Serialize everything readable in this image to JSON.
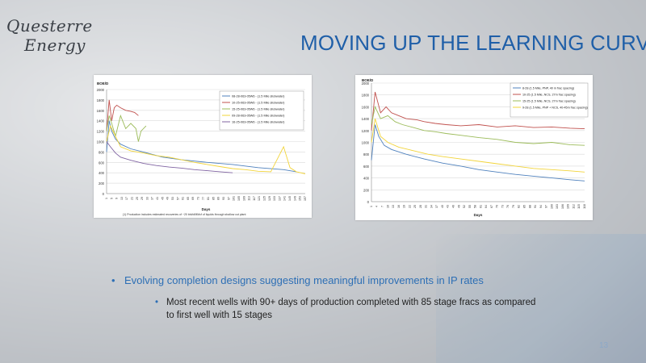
{
  "slide": {
    "title": "MOVING UP THE LEARNING CURVE",
    "logo_line1": "Questerre",
    "logo_line2": "Energy",
    "bullet1": "Evolving completion designs suggesting meaningful improvements in IP rates",
    "bullet2": "Most recent wells with 90+ days of production completed with 85 stage fracs as compared to first well with 15 stages",
    "page_number": "13"
  },
  "chart_data": [
    {
      "type": "line",
      "ylabel": "BOE/D",
      "xlabel": "Days",
      "ylim": [
        0,
        2000
      ],
      "yticks": [
        0,
        200,
        400,
        600,
        800,
        1000,
        1200,
        1400,
        1600,
        1800,
        2000
      ],
      "xticks": [
        1,
        5,
        9,
        13,
        17,
        21,
        25,
        29,
        33,
        37,
        41,
        45,
        49,
        53,
        57,
        61,
        65,
        69,
        73,
        77,
        81,
        85,
        89,
        93,
        97,
        101,
        105,
        109,
        113,
        117,
        121,
        125,
        129,
        133,
        137,
        141,
        145,
        149,
        153,
        157
      ],
      "xlim": [
        1,
        157
      ],
      "footnote": "(1) Production includes estimated recoveries of ~20 bbl/d/MMcf of liquids through shallow cut plant",
      "legend_position": "top-right",
      "grid": true,
      "series": [
        {
          "name": "08-28-063-05W6 - (1.5 Mile slickwater)",
          "color": "#4f81bd",
          "points": [
            [
              1,
              800
            ],
            [
              3,
              1400
            ],
            [
              5,
              1200
            ],
            [
              8,
              1050
            ],
            [
              12,
              950
            ],
            [
              20,
              860
            ],
            [
              30,
              800
            ],
            [
              45,
              700
            ],
            [
              60,
              650
            ],
            [
              80,
              600
            ],
            [
              100,
              560
            ],
            [
              120,
              500
            ],
            [
              140,
              460
            ],
            [
              150,
              420
            ]
          ]
        },
        {
          "name": "10-25-063-05W6 - (1.5 Mile slickwater)",
          "color": "#c0504d",
          "points": [
            [
              1,
              1200
            ],
            [
              3,
              1800
            ],
            [
              5,
              1400
            ],
            [
              7,
              1650
            ],
            [
              9,
              1700
            ],
            [
              12,
              1650
            ],
            [
              16,
              1600
            ],
            [
              20,
              1580
            ],
            [
              23,
              1560
            ],
            [
              26,
              1500
            ]
          ]
        },
        {
          "name": "15-25-063-05W6 - (1.5 Mile slickwater)",
          "color": "#9bbb59",
          "points": [
            [
              1,
              1200
            ],
            [
              3,
              1500
            ],
            [
              5,
              1350
            ],
            [
              8,
              1100
            ],
            [
              12,
              1500
            ],
            [
              16,
              1250
            ],
            [
              20,
              1350
            ],
            [
              24,
              1250
            ],
            [
              26,
              1000
            ],
            [
              28,
              1200
            ],
            [
              32,
              1300
            ]
          ]
        },
        {
          "name": "09-28-063-05W6 - (1.5 Mile slickwater)",
          "color": "#f2d43a",
          "points": [
            [
              1,
              1000
            ],
            [
              4,
              1300
            ],
            [
              8,
              1100
            ],
            [
              12,
              900
            ],
            [
              20,
              820
            ],
            [
              30,
              780
            ],
            [
              40,
              730
            ],
            [
              50,
              700
            ],
            [
              60,
              650
            ],
            [
              70,
              600
            ],
            [
              80,
              560
            ],
            [
              90,
              520
            ],
            [
              100,
              480
            ],
            [
              110,
              460
            ],
            [
              120,
              430
            ],
            [
              130,
              420
            ],
            [
              140,
              900
            ],
            [
              145,
              500
            ],
            [
              150,
              420
            ],
            [
              157,
              380
            ]
          ]
        },
        {
          "name": "16-25-063-05W6 - (1.5 Mile slickwater)",
          "color": "#8064a2",
          "points": [
            [
              1,
              1000
            ],
            [
              4,
              900
            ],
            [
              8,
              780
            ],
            [
              12,
              700
            ],
            [
              20,
              640
            ],
            [
              30,
              580
            ],
            [
              40,
              540
            ],
            [
              50,
              510
            ],
            [
              60,
              490
            ],
            [
              70,
              460
            ],
            [
              80,
              440
            ],
            [
              90,
              420
            ],
            [
              100,
              400
            ]
          ]
        }
      ]
    },
    {
      "type": "line",
      "ylabel": "BOE/D",
      "xlabel": "Days",
      "ylim": [
        0,
        2000
      ],
      "yticks": [
        0,
        200,
        400,
        600,
        800,
        1000,
        1200,
        1400,
        1600,
        1800,
        2000
      ],
      "xticks": [
        1,
        4,
        7,
        10,
        13,
        16,
        19,
        22,
        25,
        28,
        31,
        34,
        37,
        40,
        43,
        46,
        49,
        52,
        55,
        58,
        61,
        64,
        67,
        70,
        73,
        76,
        79,
        82,
        85,
        88,
        91,
        94,
        97,
        100,
        103,
        106,
        109,
        112,
        115,
        118
      ],
      "xlim": [
        1,
        118
      ],
      "legend_position": "top-right",
      "grid": true,
      "series": [
        {
          "name": "8-28 (1.5 Mile, PNP, 40 m frac spacing)",
          "color": "#4f81bd",
          "points": [
            [
              1,
              700
            ],
            [
              3,
              1300
            ],
            [
              5,
              1100
            ],
            [
              8,
              950
            ],
            [
              12,
              880
            ],
            [
              20,
              800
            ],
            [
              30,
              720
            ],
            [
              40,
              650
            ],
            [
              50,
              600
            ],
            [
              60,
              540
            ],
            [
              70,
              500
            ],
            [
              80,
              460
            ],
            [
              90,
              430
            ],
            [
              100,
              400
            ],
            [
              110,
              370
            ],
            [
              118,
              350
            ]
          ]
        },
        {
          "name": "10-25 (1.5 Mile, NCS, 27m frac spacing)",
          "color": "#c0504d",
          "points": [
            [
              1,
              1200
            ],
            [
              3,
              1850
            ],
            [
              6,
              1500
            ],
            [
              9,
              1600
            ],
            [
              12,
              1500
            ],
            [
              16,
              1450
            ],
            [
              20,
              1400
            ],
            [
              26,
              1380
            ],
            [
              30,
              1350
            ],
            [
              36,
              1320
            ],
            [
              42,
              1300
            ],
            [
              50,
              1280
            ],
            [
              60,
              1300
            ],
            [
              70,
              1260
            ],
            [
              80,
              1280
            ],
            [
              90,
              1250
            ],
            [
              100,
              1260
            ],
            [
              110,
              1240
            ],
            [
              118,
              1230
            ]
          ]
        },
        {
          "name": "15-25 (1.5 Mile, NCS, 27m frac spacing)",
          "color": "#9bbb59",
          "points": [
            [
              1,
              1300
            ],
            [
              3,
              1600
            ],
            [
              6,
              1400
            ],
            [
              10,
              1450
            ],
            [
              14,
              1350
            ],
            [
              18,
              1300
            ],
            [
              24,
              1250
            ],
            [
              30,
              1200
            ],
            [
              36,
              1180
            ],
            [
              42,
              1150
            ],
            [
              50,
              1120
            ],
            [
              60,
              1080
            ],
            [
              70,
              1050
            ],
            [
              80,
              1000
            ],
            [
              90,
              980
            ],
            [
              100,
              1000
            ],
            [
              110,
              960
            ],
            [
              118,
              950
            ]
          ]
        },
        {
          "name": "9-28 (1.5 Mile, PNP + NCS, 40-45m frac spacing)",
          "color": "#f2d43a",
          "points": [
            [
              1,
              1000
            ],
            [
              3,
              1400
            ],
            [
              6,
              1100
            ],
            [
              10,
              1000
            ],
            [
              16,
              920
            ],
            [
              24,
              860
            ],
            [
              32,
              800
            ],
            [
              40,
              760
            ],
            [
              50,
              720
            ],
            [
              60,
              680
            ],
            [
              70,
              640
            ],
            [
              80,
              600
            ],
            [
              90,
              560
            ],
            [
              100,
              540
            ],
            [
              110,
              520
            ],
            [
              118,
              500
            ]
          ]
        }
      ]
    }
  ]
}
